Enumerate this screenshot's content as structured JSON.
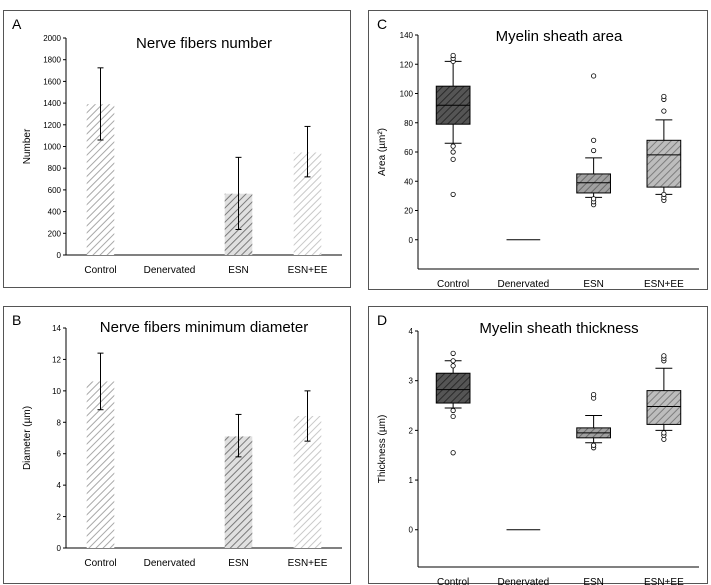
{
  "chart_data": [
    {
      "panel_label": "A",
      "type": "bar",
      "title": "Nerve fibers number",
      "ylabel": "Number",
      "xlabel": "",
      "ylim": [
        0,
        2000
      ],
      "yticks": [
        0,
        200,
        400,
        600,
        800,
        1000,
        1200,
        1400,
        1600,
        1800,
        2000
      ],
      "categories": [
        "Control",
        "Denervated",
        "ESN",
        "ESN+EE"
      ],
      "values": [
        1390,
        0,
        565,
        945
      ],
      "error_low": [
        1060,
        0,
        235,
        720
      ],
      "error_high": [
        1725,
        0,
        900,
        1185
      ],
      "grid": false
    },
    {
      "panel_label": "B",
      "type": "bar",
      "title": "Nerve fibers minimum diameter",
      "ylabel": "Diameter (µm)",
      "xlabel": "",
      "ylim": [
        0,
        14
      ],
      "yticks": [
        0,
        2,
        4,
        6,
        8,
        10,
        12,
        14
      ],
      "categories": [
        "Control",
        "Denervated",
        "ESN",
        "ESN+EE"
      ],
      "values": [
        10.6,
        0,
        7.1,
        8.4
      ],
      "error_low": [
        8.8,
        0,
        5.8,
        6.8
      ],
      "error_high": [
        12.4,
        0,
        8.5,
        10.0
      ],
      "grid": false
    },
    {
      "panel_label": "C",
      "type": "box",
      "title": "Myelin sheath area",
      "ylabel": "Area (µm²)",
      "xlabel": "",
      "ylim": [
        -20,
        140
      ],
      "yticks": [
        0,
        20,
        40,
        60,
        80,
        100,
        120,
        140
      ],
      "categories": [
        "Control",
        "Denervated",
        "ESN",
        "ESN+EE"
      ],
      "boxes": [
        {
          "whisker_low": 66,
          "q1": 79,
          "median": 92,
          "q3": 105,
          "whisker_high": 122,
          "outliers": [
            31,
            55,
            60,
            64,
            122,
            124,
            126
          ]
        },
        {
          "whisker_low": 0,
          "q1": 0,
          "median": 0,
          "q3": 0,
          "whisker_high": 0,
          "outliers": []
        },
        {
          "whisker_low": 29,
          "q1": 32,
          "median": 39,
          "q3": 45,
          "whisker_high": 56,
          "outliers": [
            24,
            26,
            28,
            61,
            68,
            112
          ]
        },
        {
          "whisker_low": 31,
          "q1": 36,
          "median": 58,
          "q3": 68,
          "whisker_high": 82,
          "outliers": [
            27,
            29,
            31,
            88,
            96,
            98
          ]
        }
      ],
      "grid": false
    },
    {
      "panel_label": "D",
      "type": "box",
      "title": "Myelin sheath thickness",
      "ylabel": "Thickness (µm)",
      "xlabel": "",
      "ylim": [
        -0.75,
        4
      ],
      "yticks": [
        0,
        1,
        2,
        3,
        4
      ],
      "categories": [
        "Control",
        "Denervated",
        "ESN",
        "ESN+EE"
      ],
      "boxes": [
        {
          "whisker_low": 2.45,
          "q1": 2.55,
          "median": 2.82,
          "q3": 3.15,
          "whisker_high": 3.4,
          "outliers": [
            1.55,
            2.28,
            2.4,
            3.3,
            3.4,
            3.55
          ]
        },
        {
          "whisker_low": 0,
          "q1": 0,
          "median": 0,
          "q3": 0,
          "whisker_high": 0,
          "outliers": []
        },
        {
          "whisker_low": 1.75,
          "q1": 1.85,
          "median": 1.95,
          "q3": 2.05,
          "whisker_high": 2.3,
          "outliers": [
            1.65,
            1.7,
            2.65,
            2.72
          ]
        },
        {
          "whisker_low": 2.0,
          "q1": 2.12,
          "median": 2.48,
          "q3": 2.8,
          "whisker_high": 3.25,
          "outliers": [
            1.82,
            1.9,
            1.95,
            3.4,
            3.45,
            3.5
          ]
        }
      ],
      "grid": false
    }
  ]
}
